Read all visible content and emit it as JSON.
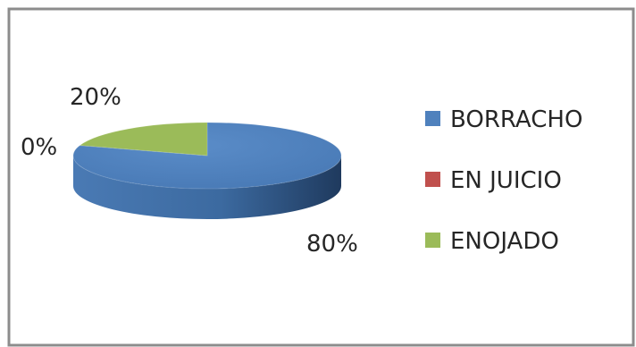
{
  "chart_data": {
    "type": "pie",
    "style": "3d",
    "title": "",
    "categories": [
      "BORRACHO",
      "EN JUICIO",
      "ENOJADO"
    ],
    "values": [
      80,
      0,
      20
    ],
    "data_labels": [
      "80%",
      "0%",
      "20%"
    ],
    "colors": [
      "#4F81BD",
      "#C0504D",
      "#9BBB59"
    ],
    "legend_position": "right"
  }
}
